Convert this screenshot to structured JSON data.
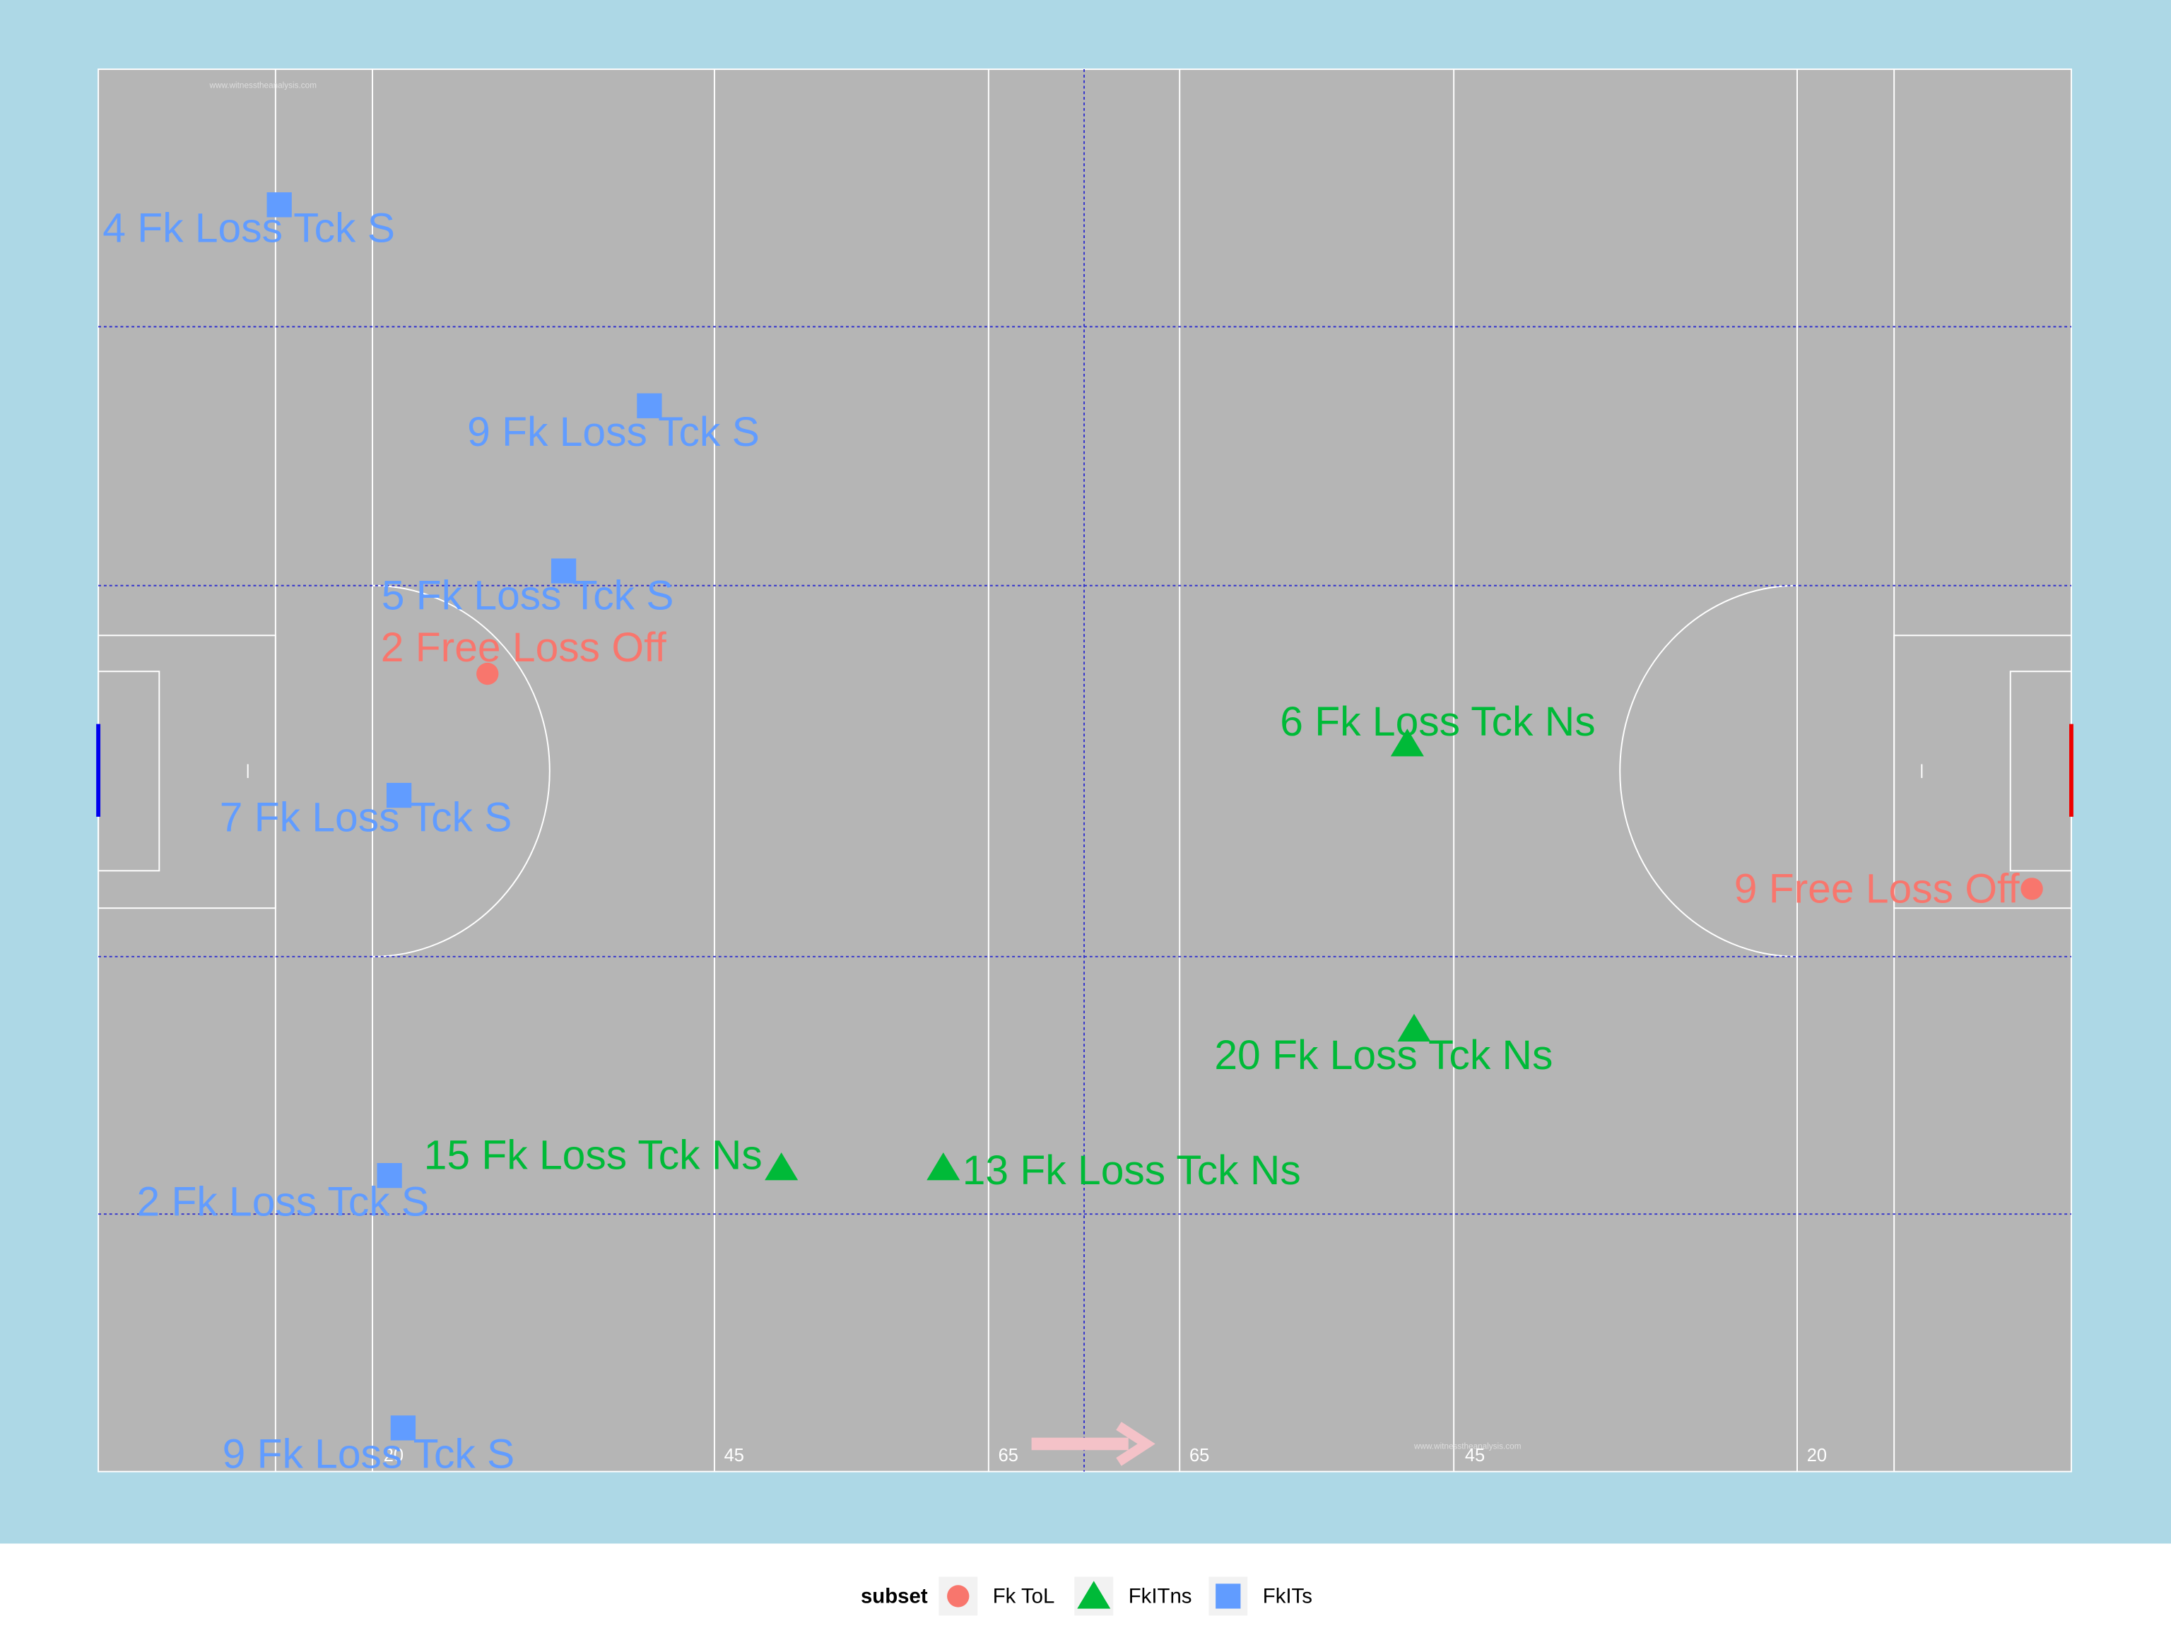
{
  "chart_data": {
    "type": "scatter",
    "xlim": [
      0,
      145
    ],
    "ylim": [
      0,
      90
    ],
    "pitch_labels": [
      "20",
      "45",
      "65",
      "65",
      "45",
      "20"
    ],
    "watermark": "www.witnesstheanalysis.com",
    "legend_title": "subset",
    "series": [
      {
        "name": "Fk ToL",
        "color": "#F8766D",
        "shape": "circle",
        "x": [
          28.6,
          142.1
        ],
        "y": [
          51.2,
          37.4
        ],
        "labels": [
          "2 Free Loss Off",
          "9 Free Loss Off"
        ]
      },
      {
        "name": "FkITns",
        "color": "#00BA38",
        "shape": "triangle",
        "x": [
          96.2,
          96.7,
          50.2,
          62.1
        ],
        "y": [
          46.7,
          28.4,
          19.5,
          19.5
        ],
        "labels": [
          "6 Fk Loss Tck Ns",
          "20 Fk Loss Tck Ns",
          "15 Fk Loss Tck Ns",
          "13 Fk Loss Tck Ns"
        ]
      },
      {
        "name": "FkITs",
        "color": "#619CFF",
        "shape": "square",
        "x": [
          13.3,
          40.5,
          34.2,
          22.1,
          21.4,
          22.4
        ],
        "y": [
          81.3,
          68.4,
          57.8,
          43.4,
          19.0,
          2.8
        ],
        "labels": [
          "4 Fk Loss Tck S",
          "9 Fk Loss Tck S",
          "5 Fk Loss Tck S",
          "7 Fk Loss Tck S",
          "2 Fk Loss Tck S",
          "9 Fk Loss Tck S"
        ]
      }
    ]
  }
}
